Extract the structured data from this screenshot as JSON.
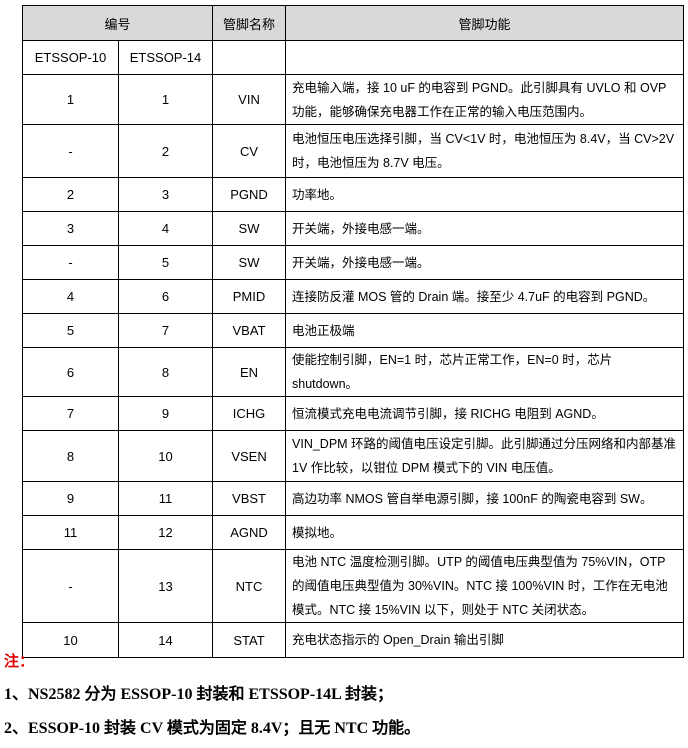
{
  "header": {
    "number": "编号",
    "pin_name": "管脚名称",
    "pin_function": "管脚功能"
  },
  "subheader": {
    "pkg10": "ETSSOP-10",
    "pkg14": "ETSSOP-14",
    "name": "",
    "func": ""
  },
  "rows": [
    {
      "p10": "1",
      "p14": "1",
      "name": "VIN",
      "func": "充电输入端，接 10 uF 的电容到 PGND。此引脚具有 UVLO 和 OVP 功能，能够确保充电器工作在正常的输入电压范围内。"
    },
    {
      "p10": "-",
      "p14": "2",
      "name": "CV",
      "func": "电池恒压电压选择引脚，当 CV<1V 时，电池恒压为 8.4V，当 CV>2V 时，电池恒压为 8.7V 电压。"
    },
    {
      "p10": "2",
      "p14": "3",
      "name": "PGND",
      "func": "功率地。"
    },
    {
      "p10": "3",
      "p14": "4",
      "name": "SW",
      "func": "开关端，外接电感一端。"
    },
    {
      "p10": "-",
      "p14": "5",
      "name": "SW",
      "func": "开关端，外接电感一端。"
    },
    {
      "p10": "4",
      "p14": "6",
      "name": "PMID",
      "func": "连接防反灌 MOS 管的 Drain 端。接至少 4.7uF 的电容到 PGND。"
    },
    {
      "p10": "5",
      "p14": "7",
      "name": "VBAT",
      "func": "电池正极端"
    },
    {
      "p10": "6",
      "p14": "8",
      "name": "EN",
      "func": "使能控制引脚，EN=1 时，芯片正常工作，EN=0 时，芯片 shutdown。"
    },
    {
      "p10": "7",
      "p14": "9",
      "name": "ICHG",
      "func": "恒流模式充电电流调节引脚，接 RICHG 电阻到 AGND。"
    },
    {
      "p10": "8",
      "p14": "10",
      "name": "VSEN",
      "func": "VIN_DPM 环路的阈值电压设定引脚。此引脚通过分压网络和内部基准 1V 作比较，以钳位 DPM 模式下的 VIN 电压值。"
    },
    {
      "p10": "9",
      "p14": "11",
      "name": "VBST",
      "func": "高边功率 NMOS 管自举电源引脚，接 100nF 的陶瓷电容到 SW。"
    },
    {
      "p10": "11",
      "p14": "12",
      "name": "AGND",
      "func": "模拟地。"
    },
    {
      "p10": "-",
      "p14": "13",
      "name": "NTC",
      "func": "电池 NTC 温度检测引脚。UTP 的阈值电压典型值为 75%VIN，OTP 的阈值电压典型值为 30%VIN。NTC 接 100%VIN 时，工作在无电池模式。NTC 接 15%VIN 以下，则处于 NTC 关闭状态。"
    },
    {
      "p10": "10",
      "p14": "14",
      "name": "STAT",
      "func": "充电状态指示的 Open_Drain 输出引脚"
    }
  ],
  "notes": {
    "heading": "注：",
    "items": [
      "1、NS2582 分为 ESSOP-10 封装和 ETSSOP-14L 封装；",
      "2、ESSOP-10 封装 CV 模式为固定 8.4V；且无 NTC 功能。"
    ]
  },
  "colors": {
    "header_bg": "#d9d9d9",
    "note_heading": "#e00000"
  }
}
